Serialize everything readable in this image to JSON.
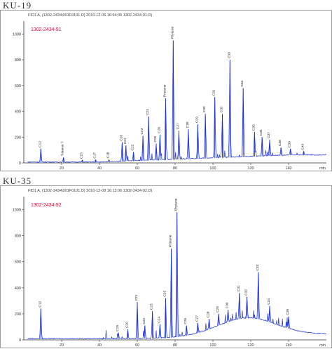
{
  "chart_data": [
    {
      "type": "line",
      "panel_label": "KU-19",
      "header": "FID1 A, (1302-2434\\001F0101.D) 2010-12-06 16:54:05 1302-2434-91.D)",
      "sample_id": "1302-2434-91",
      "x_unit": "min",
      "xlim": [
        0,
        160
      ],
      "ylim": [
        0,
        1100
      ],
      "x_ticks": [
        20,
        40,
        60,
        80,
        100,
        120,
        140
      ],
      "y_ticks": [
        0,
        200,
        400,
        600,
        800,
        1000
      ],
      "line_color": "#1a2fd4",
      "peaks": [
        {
          "x": 9,
          "y": 110,
          "label": "C12"
        },
        {
          "x": 21,
          "y": 42,
          "label": "Toluene ?"
        },
        {
          "x": 31,
          "y": 22,
          "label": "C15"
        },
        {
          "x": 38,
          "y": 24,
          "label": "C17"
        },
        {
          "x": 45,
          "y": 25,
          "label": "C18"
        },
        {
          "x": 52,
          "y": 160,
          "label": "C20"
        },
        {
          "x": 54,
          "y": 135,
          "label": "C21"
        },
        {
          "x": 58,
          "y": 85,
          "label": "C22"
        },
        {
          "x": 63,
          "y": 210,
          "label": "C23"
        },
        {
          "x": 66,
          "y": 360,
          "label": "C24"
        },
        {
          "x": 70,
          "y": 150,
          "label": "C25"
        },
        {
          "x": 72,
          "y": 220,
          "label": "C26"
        },
        {
          "x": 75,
          "y": 500,
          "label": "Pristane"
        },
        {
          "x": 79,
          "y": 950,
          "label": "Phytane"
        },
        {
          "x": 82,
          "y": 250,
          "label": "C27"
        },
        {
          "x": 87,
          "y": 260,
          "label": "C28"
        },
        {
          "x": 92,
          "y": 300,
          "label": "C29"
        },
        {
          "x": 96,
          "y": 380,
          "label": "C30"
        },
        {
          "x": 101,
          "y": 510,
          "label": "C31"
        },
        {
          "x": 105,
          "y": 380,
          "label": "C32"
        },
        {
          "x": 109,
          "y": 800,
          "label": "C33"
        },
        {
          "x": 116,
          "y": 580,
          "label": "C34"
        },
        {
          "x": 122,
          "y": 240,
          "label": "C35"
        },
        {
          "x": 126,
          "y": 200,
          "label": "C36"
        },
        {
          "x": 130,
          "y": 180,
          "label": "C37"
        },
        {
          "x": 136,
          "y": 120,
          "label": "C38"
        },
        {
          "x": 141,
          "y": 110,
          "label": "C39"
        },
        {
          "x": 148,
          "y": 90,
          "label": "C40"
        }
      ]
    },
    {
      "type": "line",
      "panel_label": "KU-35",
      "header": "FID1 A, (1302-2434\\001F0101.D) 2010-12-08 16:13:06 1302-2434-92.D)",
      "sample_id": "1302-2434-92",
      "x_unit": "min",
      "xlim": [
        0,
        160
      ],
      "ylim": [
        0,
        1100
      ],
      "x_ticks": [
        20,
        40,
        60,
        80,
        100,
        120,
        140
      ],
      "y_ticks": [
        0,
        200,
        400,
        600,
        800,
        1000
      ],
      "line_color": "#1a2fd4",
      "peaks": [
        {
          "x": 9,
          "y": 240,
          "label": "C12"
        },
        {
          "x": 50,
          "y": 55,
          "label": "C19"
        },
        {
          "x": 55,
          "y": 80,
          "label": "C20"
        },
        {
          "x": 60,
          "y": 290,
          "label": "C21"
        },
        {
          "x": 64,
          "y": 110,
          "label": "C22"
        },
        {
          "x": 68,
          "y": 220,
          "label": "C23"
        },
        {
          "x": 72,
          "y": 120,
          "label": "C24"
        },
        {
          "x": 75,
          "y": 320,
          "label": "C25"
        },
        {
          "x": 78,
          "y": 700,
          "label": "Pristane"
        },
        {
          "x": 81,
          "y": 980,
          "label": "Phytane"
        },
        {
          "x": 86,
          "y": 110,
          "label": "C26"
        },
        {
          "x": 92,
          "y": 130,
          "label": "C27"
        },
        {
          "x": 98,
          "y": 160,
          "label": "C28"
        },
        {
          "x": 103,
          "y": 200,
          "label": "C29"
        },
        {
          "x": 108,
          "y": 230,
          "label": "C30"
        },
        {
          "x": 114,
          "y": 360,
          "label": "C31"
        },
        {
          "x": 118,
          "y": 330,
          "label": "C32"
        },
        {
          "x": 124,
          "y": 520,
          "label": "C33"
        },
        {
          "x": 130,
          "y": 260,
          "label": "C34"
        },
        {
          "x": 140,
          "y": 180,
          "label": "C35"
        }
      ]
    }
  ]
}
